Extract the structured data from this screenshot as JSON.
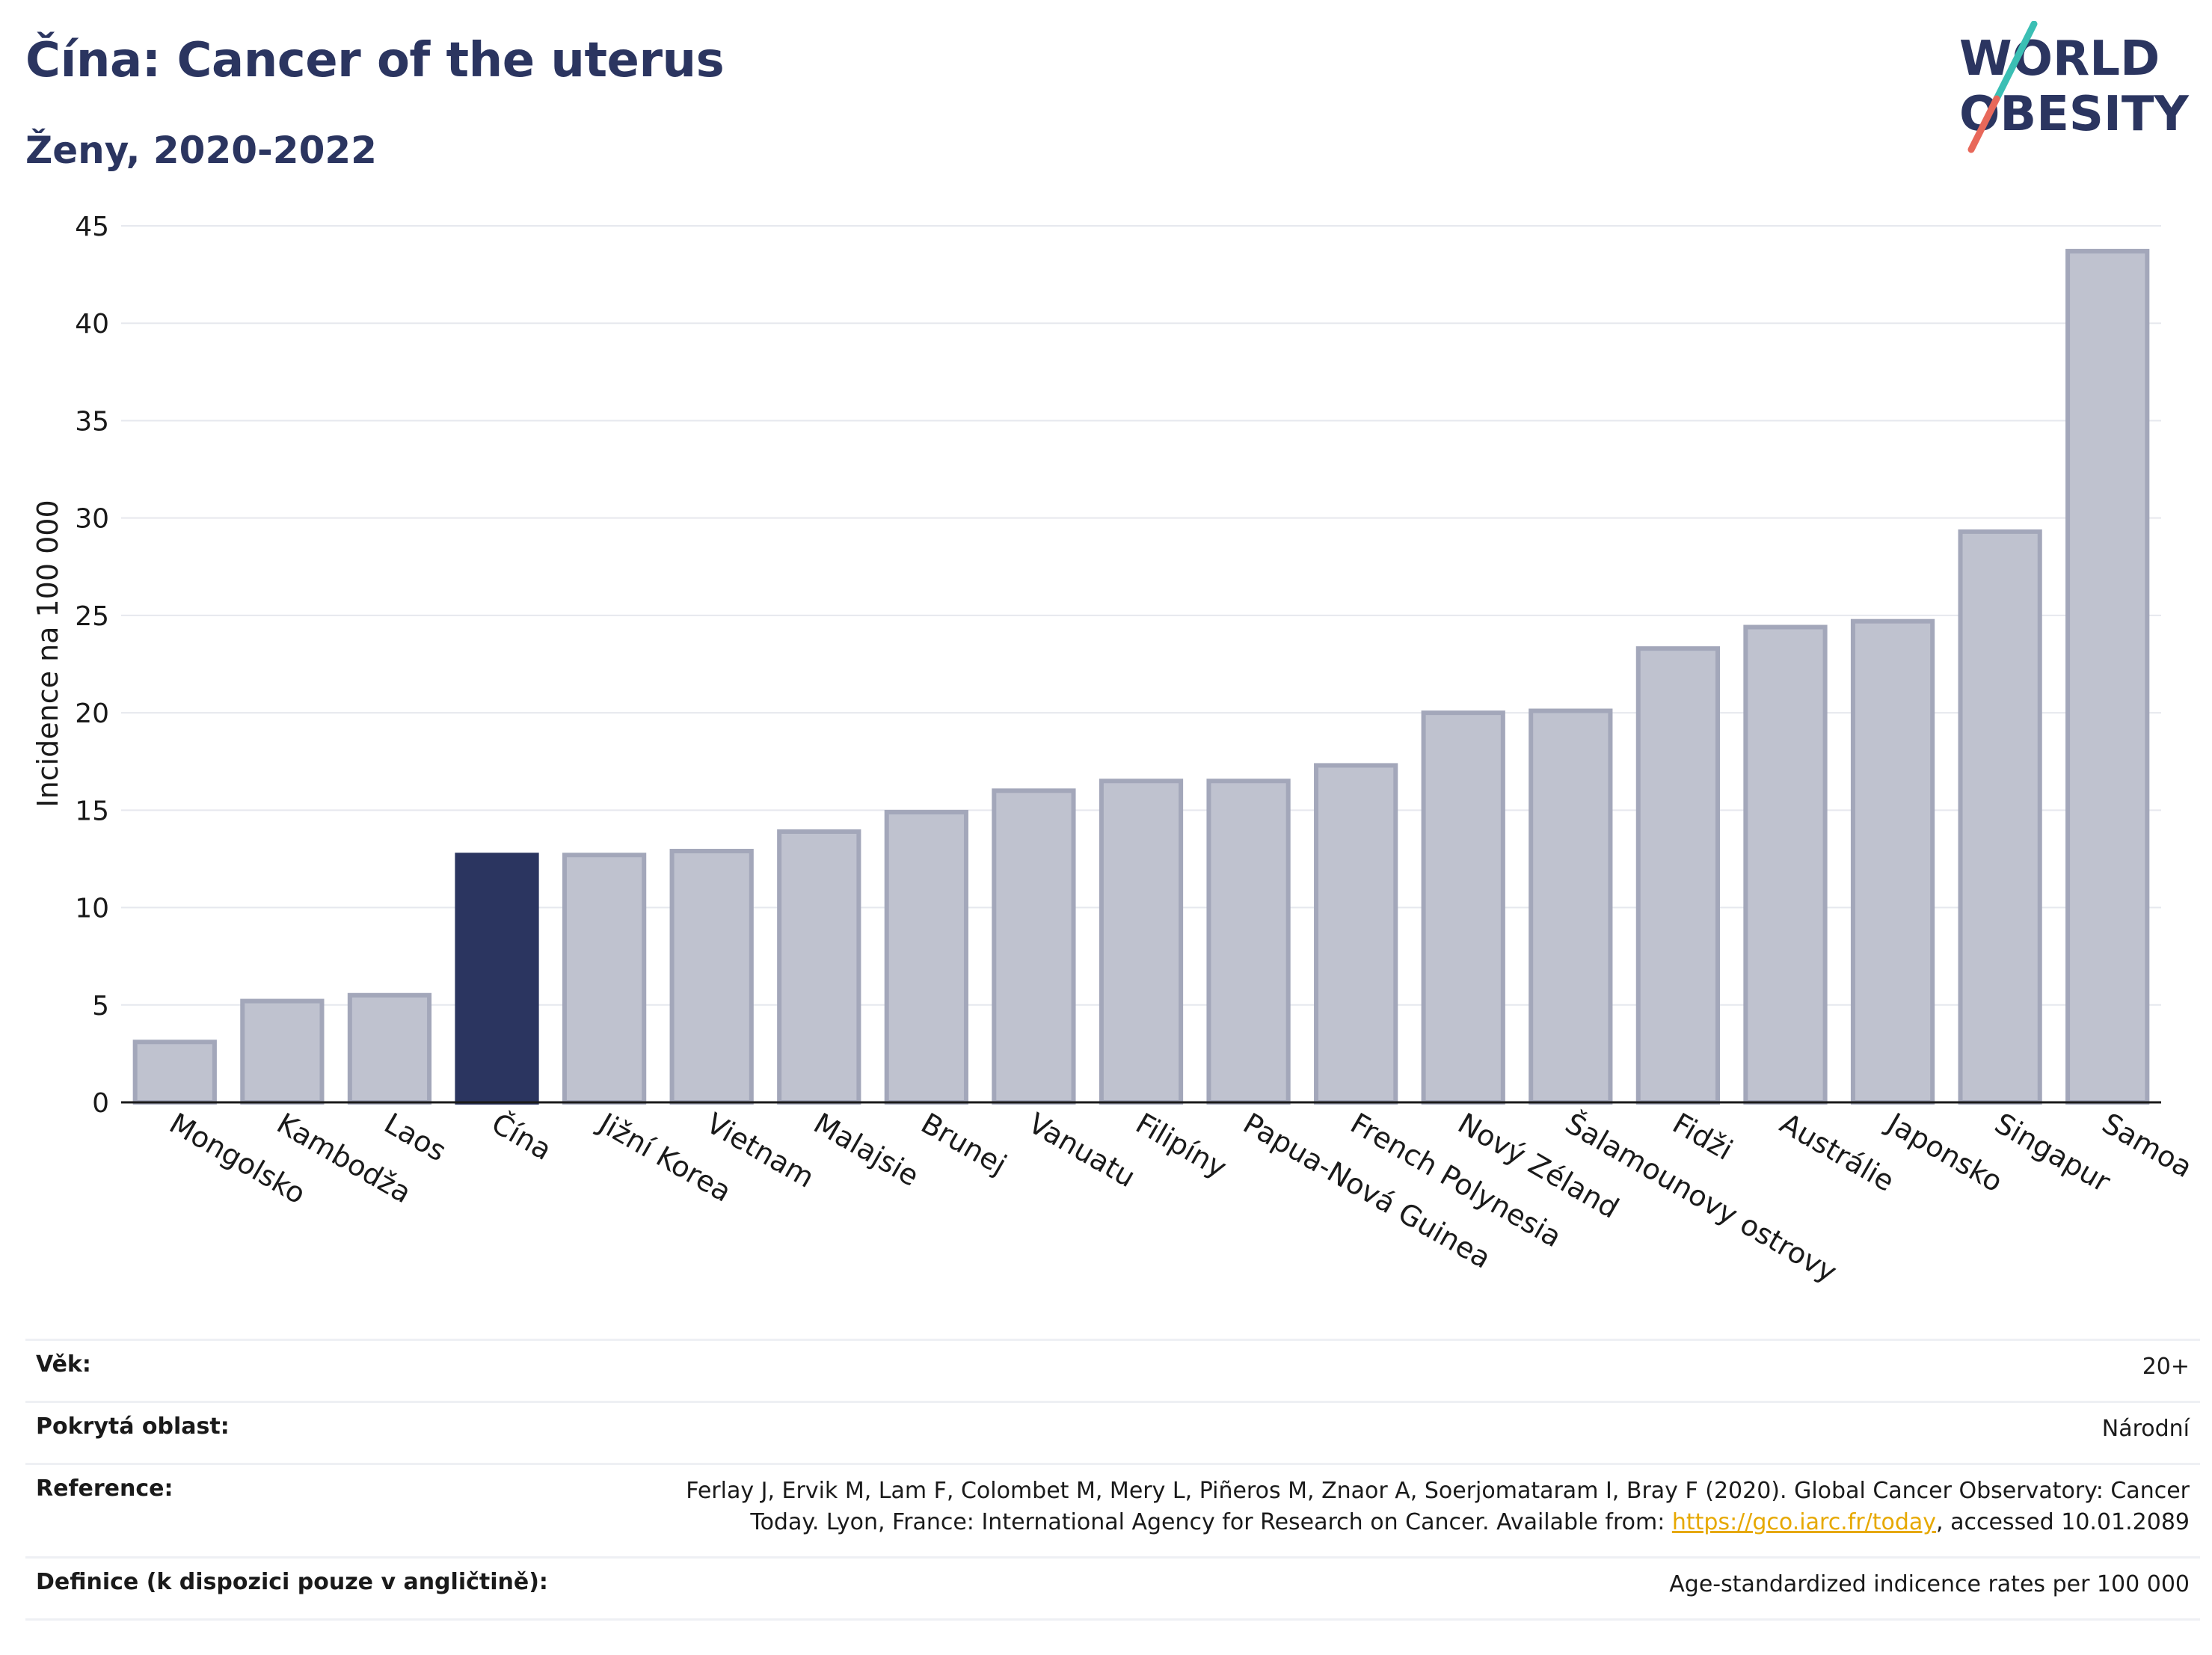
{
  "header": {
    "title": "Čína: Cancer of the uterus",
    "subtitle": "Ženy, 2020-2022"
  },
  "logo": {
    "line1": "WORLD",
    "line2": "OBESITY",
    "accent_teal": "#3bbfb4",
    "accent_red": "#e8685a",
    "text_color": "#2b3560"
  },
  "chart_data": {
    "type": "bar",
    "title": "Čína: Cancer of the uterus",
    "subtitle": "Ženy, 2020-2022",
    "ylabel": "Incidence na 100 000",
    "xlabel": "",
    "ylim": [
      0,
      45
    ],
    "yticks": [
      0,
      5,
      10,
      15,
      20,
      25,
      30,
      35,
      40,
      45
    ],
    "grid": true,
    "highlight_category": "Čína",
    "highlight_color": "#2b3560",
    "bar_color": "#bfc2cf",
    "bar_edge_color": "#a3a7ba",
    "categories": [
      "Mongolsko",
      "Kambodža",
      "Laos",
      "Čína",
      "Jižní Korea",
      "Vietnam",
      "Malajsie",
      "Brunej",
      "Vanuatu",
      "Filipíny",
      "Papua-Nová Guinea",
      "French Polynesia",
      "Nový Zéland",
      "Šalamounovy ostrovy",
      "Fidži",
      "Austrálie",
      "Japonsko",
      "Singapur",
      "Samoa"
    ],
    "values": [
      3.1,
      5.2,
      5.5,
      12.7,
      12.7,
      12.9,
      13.9,
      14.9,
      16.0,
      16.5,
      16.5,
      17.3,
      20.0,
      20.1,
      23.3,
      24.4,
      24.7,
      29.3,
      43.7
    ]
  },
  "info": {
    "age_label": "Věk:",
    "age_value": "20+",
    "coverage_label": "Pokrytá oblast:",
    "coverage_value": "Národní",
    "reference_label": "Reference:",
    "reference_text_1": "Ferlay J, Ervik M, Lam F, Colombet M, Mery L, Piñeros M, Znaor A, Soerjomataram I, Bray F (2020). Global Cancer Observatory: Cancer",
    "reference_text_2": "Today. Lyon, France: International Agency for Research on Cancer. Available from:",
    "reference_link": "https://gco.iarc.fr/today",
    "reference_text_3": ", accessed 10.01.2089",
    "definition_label": "Definice (k dispozici pouze v angličtině):",
    "definition_value": "Age-standardized indicence rates per 100 000"
  }
}
